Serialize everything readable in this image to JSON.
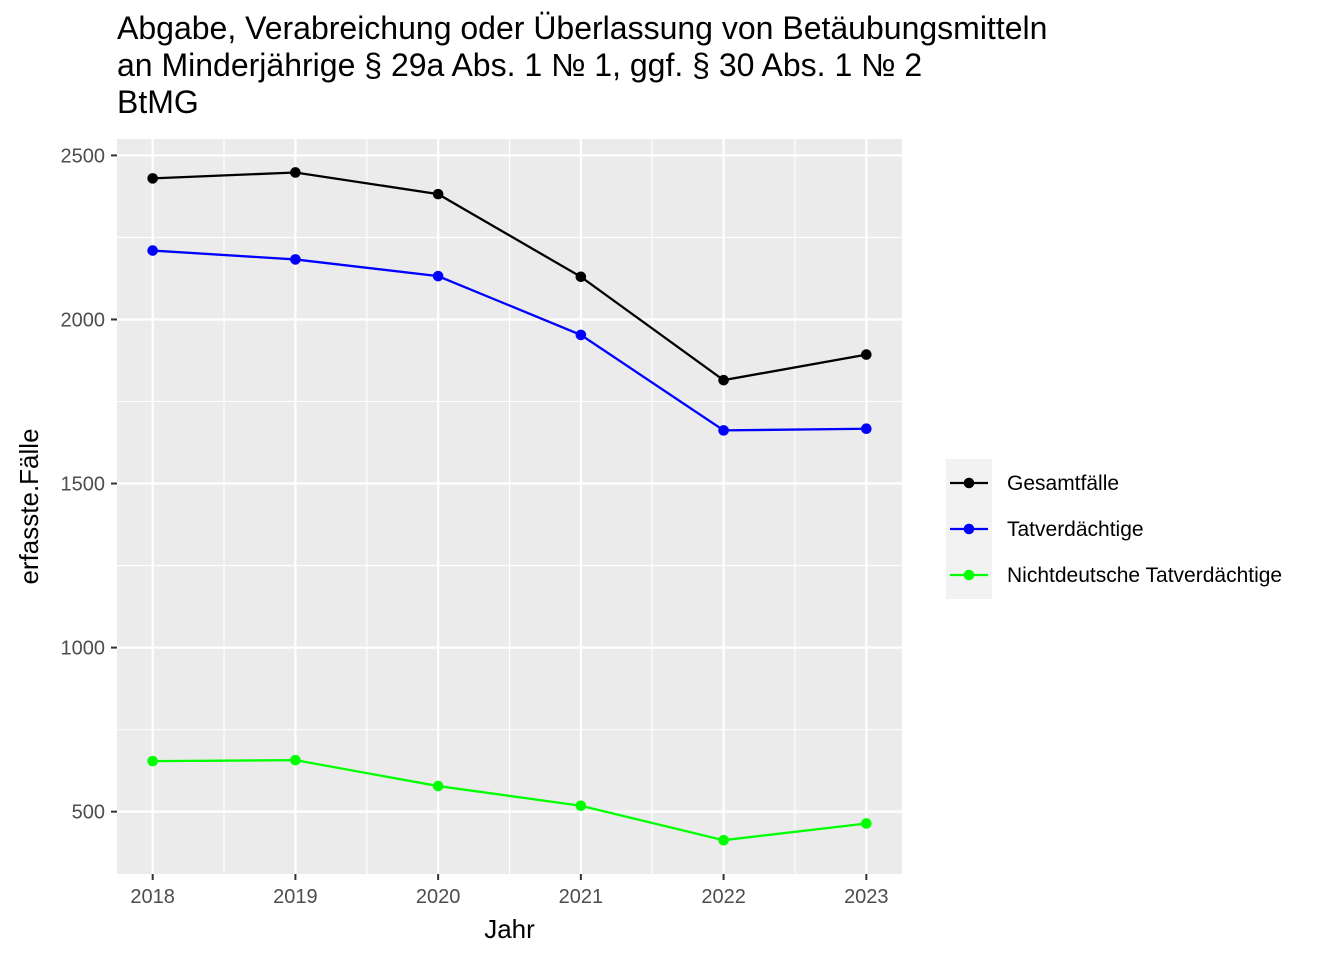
{
  "chart_data": {
    "type": "line",
    "title": "Abgabe, Verabreichung oder Überlassung von Betäubungsmitteln\nan Minderjährige § 29a Abs. 1 № 1, ggf. § 30 Abs. 1 № 2\nBtMG",
    "xlabel": "Jahr",
    "ylabel": "erfasste.Fälle",
    "x": [
      "2018",
      "2019",
      "2020",
      "2021",
      "2022",
      "2023"
    ],
    "xlim": [
      2017.75,
      2023.25
    ],
    "ylim": [
      310,
      2550
    ],
    "yticks": [
      500,
      1000,
      1500,
      2000,
      2500
    ],
    "grid": true,
    "legend_position": "right",
    "series": [
      {
        "name": "Gesamtfälle",
        "color": "#000000",
        "values": [
          2430,
          2448,
          2382,
          2130,
          1815,
          1893
        ]
      },
      {
        "name": "Tatverdächtige",
        "color": "#0000ff",
        "values": [
          2210,
          2183,
          2132,
          1953,
          1662,
          1667
        ]
      },
      {
        "name": "Nichtdeutsche Tatverdächtige",
        "color": "#00ff00",
        "values": [
          654,
          657,
          578,
          518,
          413,
          464
        ]
      }
    ]
  }
}
